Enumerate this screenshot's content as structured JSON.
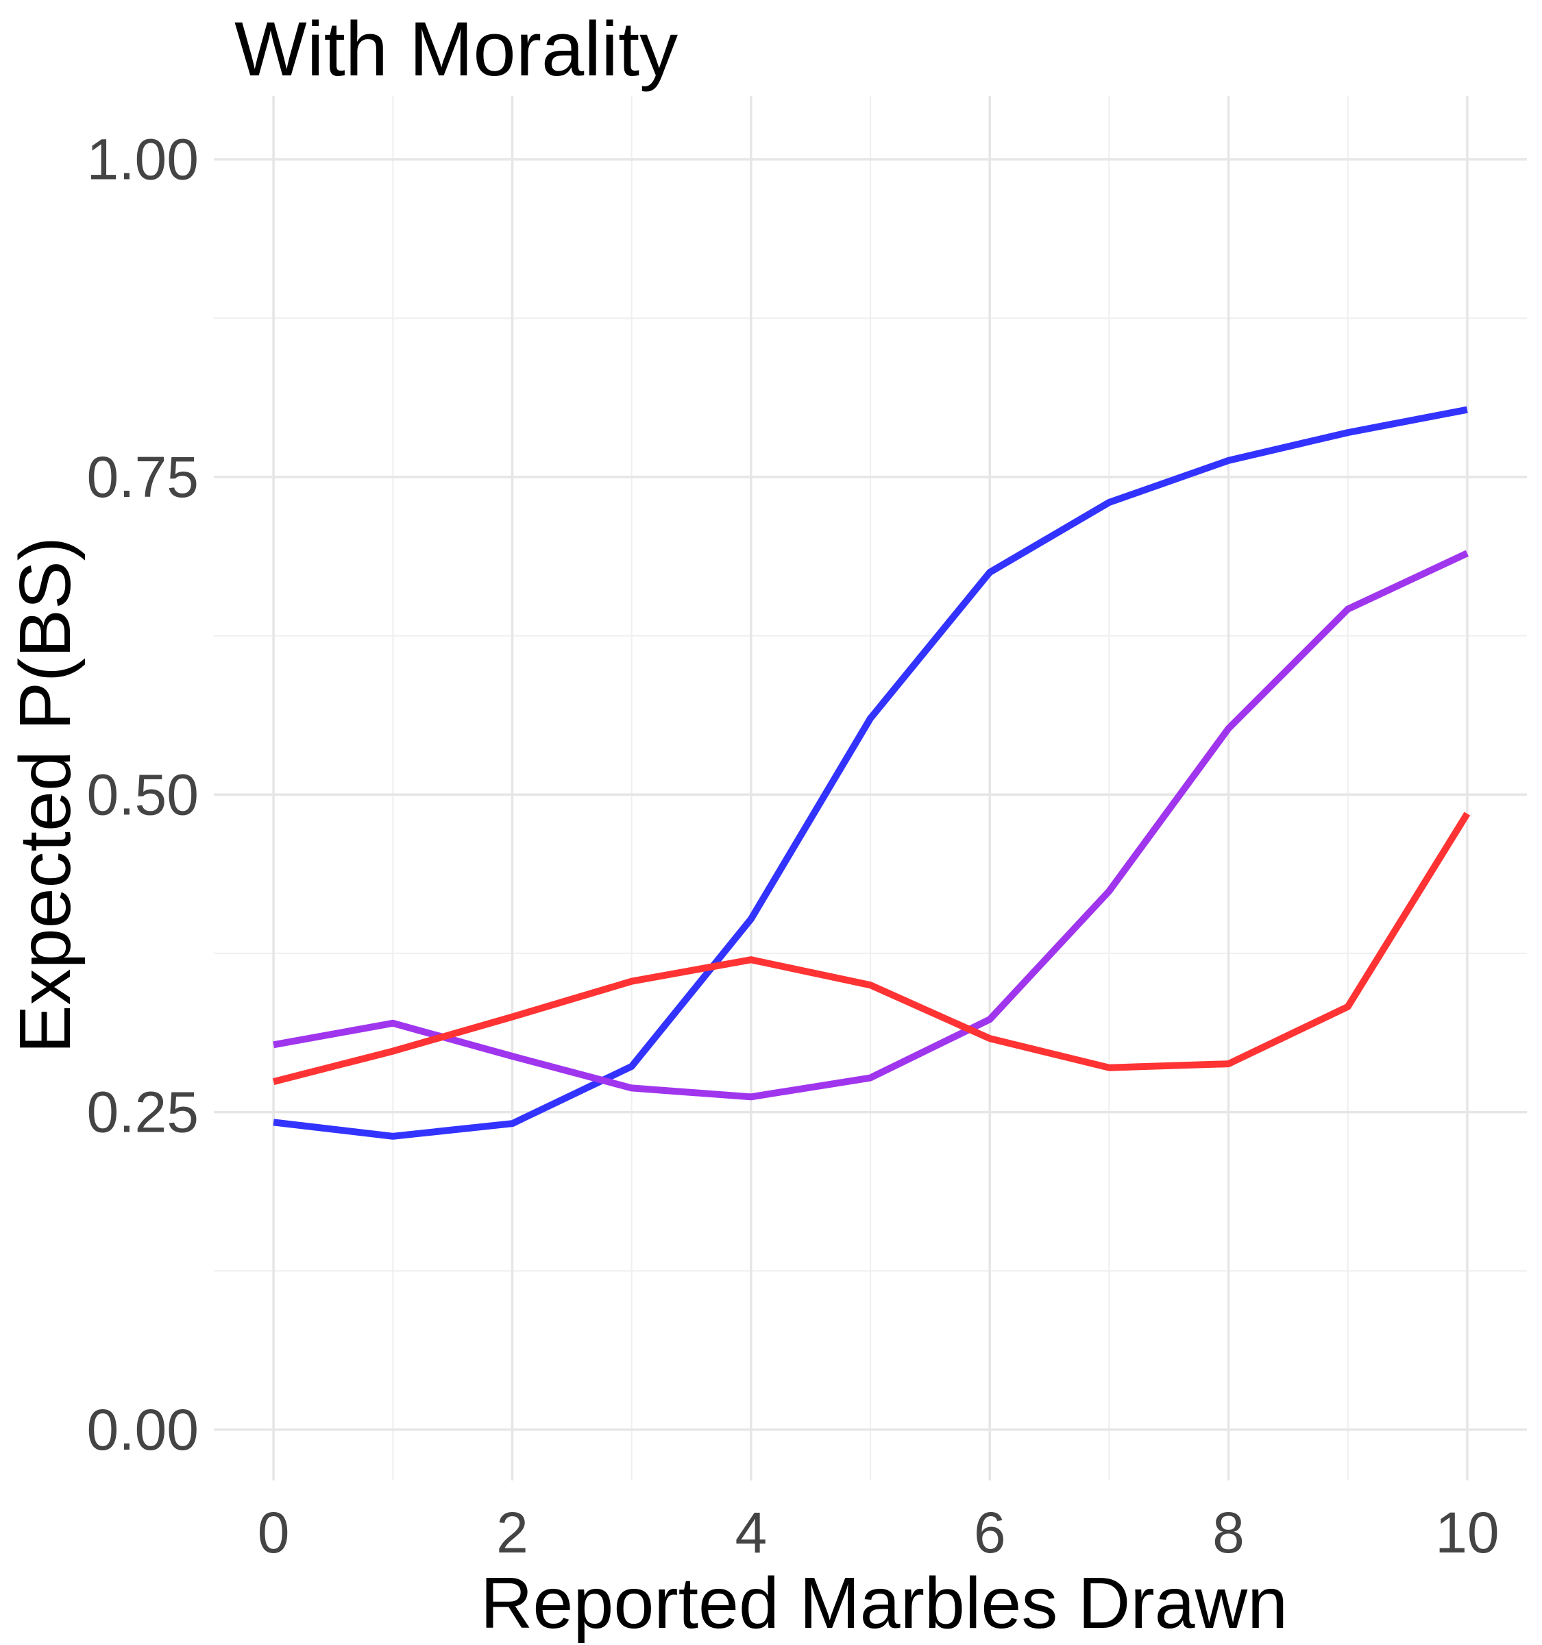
{
  "chart_data": {
    "type": "line",
    "title": "With Morality",
    "xlabel": "Reported Marbles Drawn",
    "ylabel": "Expected P(BS)",
    "xlim": [
      -0.5,
      10.5
    ],
    "ylim": [
      -0.04,
      1.05
    ],
    "x_ticks": [
      0,
      2,
      4,
      6,
      8,
      10
    ],
    "x_tick_labels": [
      "0",
      "2",
      "4",
      "6",
      "8",
      "10"
    ],
    "x_minor_ticks": [
      1,
      3,
      5,
      7,
      9
    ],
    "y_ticks": [
      0,
      0.25,
      0.5,
      0.75,
      1.0
    ],
    "y_tick_labels": [
      "0.00",
      "0.25",
      "0.50",
      "0.75",
      "1.00"
    ],
    "y_minor_ticks": [
      0.125,
      0.375,
      0.625,
      0.875
    ],
    "grid": true,
    "legend": "none",
    "x": [
      0,
      1,
      2,
      3,
      4,
      5,
      6,
      7,
      8,
      9,
      10
    ],
    "series": [
      {
        "color": "#3333ff",
        "values": [
          0.242,
          0.231,
          0.241,
          0.286,
          0.402,
          0.56,
          0.675,
          0.73,
          0.763,
          0.785,
          0.803
        ]
      },
      {
        "color": "#a035ee",
        "values": [
          0.303,
          0.32,
          0.294,
          0.269,
          0.262,
          0.277,
          0.323,
          0.424,
          0.552,
          0.646,
          0.69
        ]
      },
      {
        "color": "#ff3333",
        "values": [
          0.274,
          0.298,
          0.325,
          0.353,
          0.37,
          0.35,
          0.308,
          0.285,
          0.288,
          0.333,
          0.485
        ]
      }
    ]
  }
}
